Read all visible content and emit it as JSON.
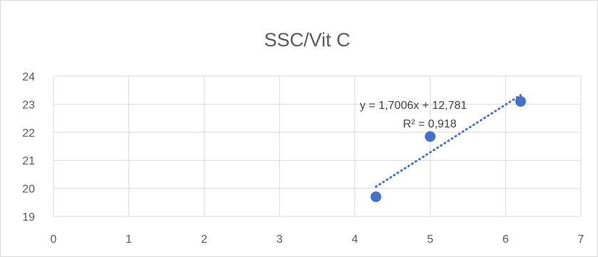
{
  "chart_data": {
    "type": "scatter",
    "title": "SSC/Vit C",
    "xlabel": "",
    "ylabel": "",
    "xlim": [
      0,
      7
    ],
    "ylim": [
      19,
      24
    ],
    "xticks": [
      0,
      1,
      2,
      3,
      4,
      5,
      6,
      7
    ],
    "yticks": [
      19,
      20,
      21,
      22,
      23,
      24
    ],
    "grid": true,
    "legend": "none",
    "series": [
      {
        "x": [
          4.28,
          5.0,
          6.2
        ],
        "y": [
          19.7,
          21.85,
          23.1
        ],
        "color": "#4472c4"
      }
    ],
    "trendline": {
      "type": "linear",
      "slope": 1.7006,
      "intercept": 12.781,
      "x_range": [
        4.28,
        6.2
      ],
      "color": "#4472c4",
      "style": "dotted",
      "equation": "y = 1,7006x + 12,781",
      "r_squared": "R² = 0,918"
    }
  }
}
